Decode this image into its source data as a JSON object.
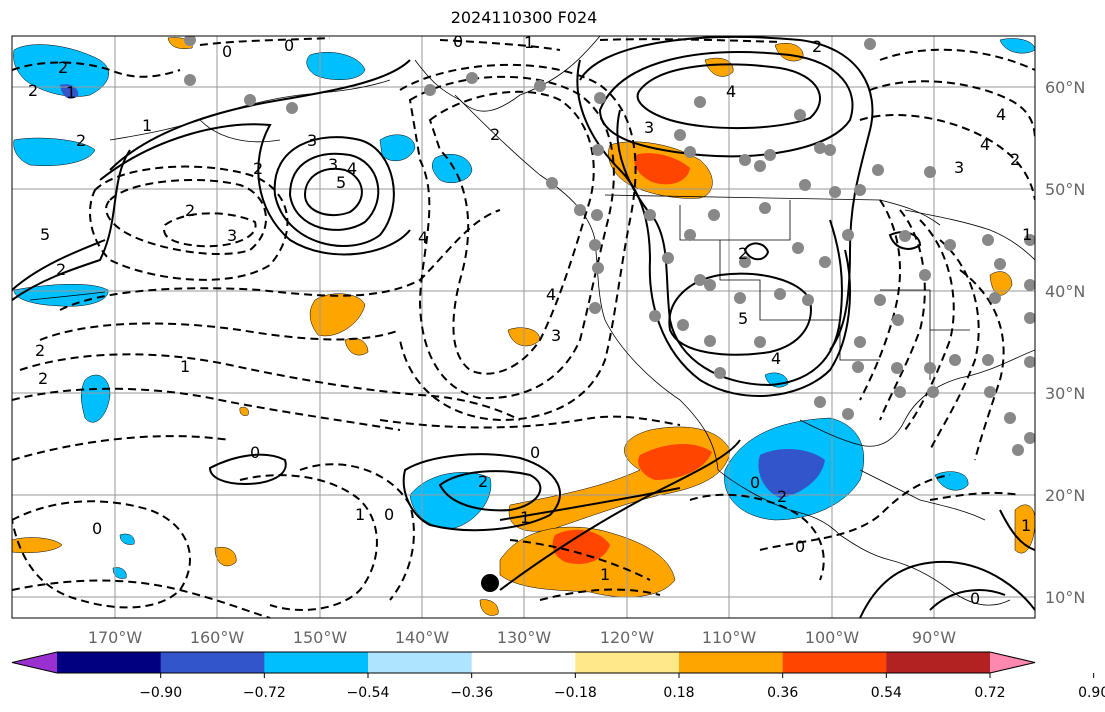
{
  "title": "2024110300 F024",
  "lon_labels": [
    "170°W",
    "160°W",
    "150°W",
    "140°W",
    "130°W",
    "120°W",
    "110°W",
    "100°W",
    "90°W"
  ],
  "lat_labels": [
    "60°N",
    "50°N",
    "40°N",
    "30°N",
    "20°N",
    "10°N"
  ],
  "colorbar": {
    "colors": [
      "#9b30d0",
      "#000080",
      "#3355cc",
      "#00bfff",
      "#aee4ff",
      "#ffffff",
      "#ffe88a",
      "#ffa500",
      "#ff4500",
      "#b22222",
      "#ff88b0"
    ],
    "tick_labels": [
      "−0.90",
      "−0.72",
      "−0.54",
      "−0.36",
      "−0.18",
      "0.18",
      "0.36",
      "0.54",
      "0.72",
      "0.90"
    ]
  },
  "contour_labels": {
    "solid": [
      "0",
      "1",
      "2",
      "2",
      "3",
      "3",
      "4",
      "5",
      "4",
      "2",
      "3",
      "4",
      "4",
      "5",
      "2",
      "1",
      "0",
      "2",
      "1",
      "0",
      "1",
      "1",
      "1",
      "2",
      "0",
      "0",
      "1"
    ],
    "dashed": [
      "0",
      "1",
      "2",
      "3",
      "2",
      "3",
      "4",
      "3",
      "4",
      "2",
      "3",
      "4",
      "0",
      "1",
      "2",
      "2",
      "1",
      "0",
      "0",
      "2",
      "1",
      "0",
      "1",
      "0"
    ]
  },
  "colors": {
    "grid": "#999999",
    "axis_label": "#666666",
    "contour": "#000000"
  }
}
